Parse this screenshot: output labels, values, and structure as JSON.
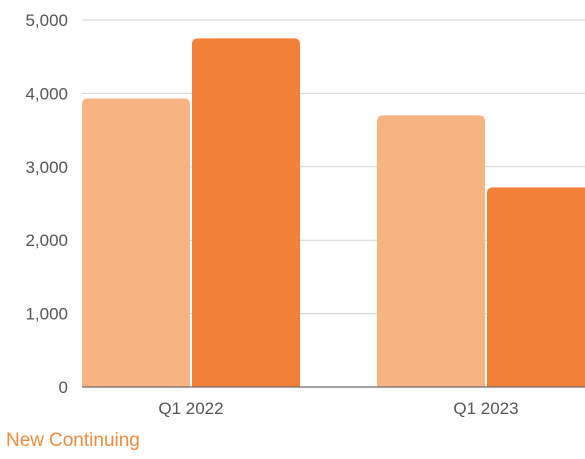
{
  "chart_data": {
    "type": "bar",
    "title": "",
    "xlabel": "",
    "ylabel": "",
    "categories": [
      "Q1 2022",
      "Q1 2023"
    ],
    "series": [
      {
        "name": "New",
        "values": [
          3930,
          3700
        ],
        "color": "#f6b482"
      },
      {
        "name": "Continuing",
        "values": [
          4750,
          2720
        ],
        "color": "#f28037"
      }
    ],
    "ylim": [
      0,
      5000
    ],
    "y_ticks": [
      0,
      1000,
      2000,
      3000,
      4000,
      5000
    ],
    "y_tick_labels": [
      "0",
      "1,000",
      "2,000",
      "3,000",
      "4,000",
      "5,000"
    ],
    "grid": true,
    "legend_position": "bottom-left",
    "colors": {
      "gridline": "#d3d3d3",
      "axis_text": "#555555",
      "legend_text": "#f28a3c",
      "baseline": "#6b6b6b"
    }
  }
}
